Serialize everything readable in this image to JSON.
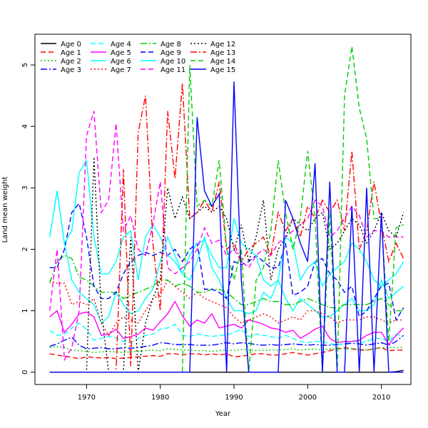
{
  "chart_data": {
    "type": "line",
    "title": "",
    "xlabel": "Year",
    "ylabel": "Land mean weight",
    "xlim": [
      1963,
      2014
    ],
    "ylim": [
      -0.2,
      5.5
    ],
    "x_ticks": [
      1970,
      1980,
      1990,
      2000,
      2010
    ],
    "y_ticks": [
      0,
      1,
      2,
      3,
      4,
      5
    ],
    "legend_position": "top-left",
    "x": [
      1965,
      1966,
      1967,
      1968,
      1969,
      1970,
      1971,
      1972,
      1973,
      1974,
      1975,
      1976,
      1977,
      1978,
      1979,
      1980,
      1981,
      1982,
      1983,
      1984,
      1985,
      1986,
      1987,
      1988,
      1989,
      1990,
      1991,
      1992,
      1993,
      1994,
      1995,
      1996,
      1997,
      1998,
      1999,
      2000,
      2001,
      2002,
      2003,
      2004,
      2005,
      2006,
      2007,
      2008,
      2009,
      2010,
      2011,
      2012,
      2013
    ],
    "series": [
      {
        "name": "Age 0",
        "color": "#000000",
        "dash": "solid",
        "values": [
          0,
          0,
          0,
          0,
          0,
          0,
          0,
          0,
          0,
          0,
          0,
          0,
          0,
          0,
          0,
          0,
          0,
          0,
          0,
          0,
          0,
          0,
          0,
          0,
          0,
          0,
          0,
          0,
          0,
          0,
          0,
          0,
          0,
          0,
          0,
          0,
          0,
          0,
          0,
          0,
          0,
          0,
          0,
          0,
          0,
          0,
          0,
          0.01,
          0.03
        ]
      },
      {
        "name": "Age 1",
        "color": "#ff0000",
        "dash": "dashed",
        "values": [
          0.3,
          0.28,
          0.26,
          0.24,
          0.22,
          0.25,
          0.24,
          0.23,
          0.24,
          0.22,
          0.23,
          0.24,
          0.25,
          0.26,
          0.27,
          0.26,
          0.3,
          0.3,
          0.28,
          0.3,
          0.3,
          0.28,
          0.3,
          0.28,
          0.3,
          0.25,
          0.26,
          0.28,
          0.3,
          0.3,
          0.28,
          0.28,
          0.3,
          0.32,
          0.3,
          0.28,
          0.3,
          0.32,
          0.35,
          0.38,
          0.4,
          0.38,
          0.36,
          0.36,
          0.38,
          0.4,
          0.35,
          0.36,
          0.36
        ]
      },
      {
        "name": "Age 2",
        "color": "#00cd00",
        "dash": "dotted",
        "values": [
          0.4,
          0.42,
          0.4,
          0.36,
          0.35,
          0.34,
          0.32,
          0.33,
          0.34,
          0.33,
          0.32,
          0.33,
          0.34,
          0.35,
          0.36,
          0.35,
          0.38,
          0.37,
          0.36,
          0.36,
          0.35,
          0.35,
          0.34,
          0.35,
          0.36,
          0.35,
          0.37,
          0.36,
          0.35,
          0.36,
          0.36,
          0.36,
          0.37,
          0.38,
          0.36,
          0.37,
          0.38,
          0.36,
          0.38,
          0.38,
          0.38,
          0.38,
          0.38,
          0.36,
          0.38,
          0.4,
          0.4,
          0.4,
          0.4
        ]
      },
      {
        "name": "Age 3",
        "color": "#0000ff",
        "dash": "dashdot",
        "values": [
          0.42,
          0.46,
          0.52,
          0.57,
          0.44,
          0.38,
          0.39,
          0.4,
          0.38,
          0.38,
          0.4,
          0.39,
          0.4,
          0.42,
          0.44,
          0.48,
          0.47,
          0.45,
          0.45,
          0.45,
          0.44,
          0.44,
          0.44,
          0.46,
          0.48,
          0.46,
          0.48,
          0.47,
          0.45,
          0.44,
          0.45,
          0.44,
          0.45,
          0.46,
          0.45,
          0.44,
          0.45,
          0.44,
          0.44,
          0.45,
          0.46,
          0.47,
          0.46,
          0.44,
          0.46,
          0.48,
          0.44,
          0.5,
          0.6
        ]
      },
      {
        "name": "Age 4",
        "color": "#00ffff",
        "dash": "dashed",
        "values": [
          0.68,
          0.6,
          0.62,
          0.72,
          0.8,
          0.7,
          0.52,
          0.55,
          0.58,
          0.56,
          0.5,
          0.48,
          0.55,
          0.6,
          0.62,
          0.7,
          0.72,
          0.78,
          0.6,
          0.58,
          0.62,
          0.6,
          0.58,
          0.6,
          0.6,
          0.65,
          0.7,
          0.58,
          0.62,
          0.6,
          0.58,
          0.55,
          0.6,
          0.55,
          0.5,
          0.48,
          0.5,
          0.5,
          0.46,
          0.45,
          0.46,
          0.52,
          0.48,
          0.5,
          0.55,
          0.55,
          0.5,
          0.62,
          0.58
        ]
      },
      {
        "name": "Age 5",
        "color": "#ff00ff",
        "dash": "solid",
        "values": [
          0.9,
          1.0,
          0.65,
          0.78,
          0.95,
          0.98,
          0.9,
          0.6,
          0.62,
          0.7,
          0.55,
          0.58,
          0.62,
          0.72,
          0.68,
          0.82,
          0.95,
          1.15,
          0.92,
          0.75,
          0.85,
          0.8,
          0.95,
          0.72,
          0.75,
          0.78,
          0.72,
          0.85,
          0.82,
          0.78,
          0.72,
          0.7,
          0.65,
          0.68,
          0.55,
          0.62,
          0.7,
          0.75,
          0.55,
          0.48,
          0.5,
          0.5,
          0.52,
          0.6,
          0.65,
          0.65,
          0.45,
          0.6,
          0.72
        ]
      },
      {
        "name": "Age 6",
        "color": "#00ffff",
        "dash": "solid",
        "values": [
          2.2,
          2.95,
          2.1,
          1.5,
          1.3,
          1.2,
          1.1,
          0.8,
          0.9,
          1.3,
          1.1,
          0.95,
          1.0,
          1.2,
          1.35,
          1.8,
          2.2,
          1.9,
          1.6,
          1.5,
          1.8,
          2.2,
          1.7,
          1.5,
          1.2,
          1.0,
          1.0,
          0.95,
          1.0,
          1.3,
          1.2,
          1.5,
          1.2,
          1.0,
          1.2,
          1.1,
          1.0,
          0.9,
          0.9,
          1.0,
          1.1,
          1.2,
          1.0,
          1.0,
          1.1,
          1.5,
          1.2,
          1.3,
          1.4
        ]
      },
      {
        "name": "Age 7",
        "color": "#ff0000",
        "dash": "dotted",
        "values": [
          1.5,
          1.45,
          1.45,
          1.1,
          1.15,
          1.1,
          1.2,
          0.8,
          0.6,
          0.8,
          0.9,
          0.85,
          0.8,
          1.0,
          1.2,
          1.25,
          1.5,
          1.4,
          1.3,
          1.2,
          1.3,
          1.2,
          1.15,
          1.1,
          1.05,
          0.9,
          0.8,
          0.85,
          0.9,
          0.95,
          0.9,
          0.8,
          0.85,
          0.9,
          0.85,
          1.0,
          1.0,
          0.95,
          0.9,
          0.8,
          0.85,
          0.85,
          0.85,
          0.9,
          0.9,
          0.85,
          0.8,
          0.85,
          0.85
        ]
      },
      {
        "name": "Age 8",
        "color": "#00cd00",
        "dash": "dashdot",
        "values": [
          1.45,
          1.8,
          1.9,
          1.85,
          1.55,
          1.5,
          1.4,
          1.3,
          1.3,
          1.3,
          1.2,
          1.25,
          1.3,
          1.35,
          1.4,
          1.5,
          1.5,
          1.4,
          1.45,
          1.4,
          1.3,
          1.3,
          1.35,
          1.35,
          1.3,
          1.2,
          1.1,
          1.1,
          1.15,
          1.2,
          1.15,
          1.15,
          1.1,
          1.1,
          1.15,
          1.2,
          1.15,
          1.1,
          1.05,
          1.05,
          1.1,
          1.1,
          1.1,
          1.1,
          1.15,
          1.2,
          1.1,
          1.0,
          1.0
        ]
      },
      {
        "name": "Age 9",
        "color": "#0000ff",
        "dash": "dashed",
        "values": [
          1.7,
          1.7,
          2.0,
          2.6,
          2.75,
          2.2,
          1.4,
          1.2,
          1.2,
          1.3,
          1.6,
          1.8,
          1.9,
          1.95,
          1.9,
          1.95,
          1.9,
          2.0,
          1.8,
          2.0,
          2.1,
          1.35,
          1.35,
          1.3,
          1.2,
          1.8,
          1.75,
          1.8,
          1.9,
          1.8,
          1.7,
          1.7,
          2.1,
          1.25,
          1.3,
          1.4,
          1.8,
          1.85,
          1.6,
          1.5,
          1.3,
          1.4,
          0.9,
          1.0,
          1.2,
          1.4,
          1.45,
          0.85,
          1.05
        ]
      },
      {
        "name": "Age 10",
        "color": "#00ffff",
        "dash": "solid",
        "values": [
          2.2,
          2.95,
          2.1,
          2.3,
          3.25,
          3.45,
          2.2,
          1.6,
          1.6,
          1.8,
          2.2,
          2.3,
          1.5,
          2.2,
          2.4,
          2.2,
          1.9,
          1.8,
          1.6,
          1.9,
          2.1,
          2.15,
          1.9,
          1.7,
          1.7,
          2.5,
          2.1,
          2.0,
          1.9,
          1.5,
          1.4,
          1.5,
          2.2,
          2.1,
          1.5,
          1.7,
          1.8,
          1.4,
          1.6,
          1.7,
          1.8,
          2.1,
          2.0,
          1.8,
          1.5,
          1.4,
          1.5,
          1.6,
          1.8
        ]
      },
      {
        "name": "Age 11",
        "color": "#ff00ff",
        "dash": "dashed",
        "values": [
          1.0,
          2.0,
          0.2,
          0.4,
          1.0,
          3.85,
          4.25,
          2.6,
          2.8,
          4.05,
          2.3,
          2.55,
          2.0,
          1.9,
          2.4,
          3.1,
          1.7,
          1.6,
          1.7,
          1.8,
          2.0,
          2.35,
          2.1,
          2.15,
          1.9,
          2.0,
          1.8,
          1.7,
          1.9,
          2.0,
          1.9,
          2.1,
          2.2,
          2.3,
          2.4,
          2.5,
          2.8,
          2.7,
          2.2,
          2.3,
          2.5,
          2.7,
          2.55,
          2.2,
          2.3,
          2.3,
          2.2,
          2.2,
          2.2
        ]
      },
      {
        "name": "Age 12",
        "color": "#000000",
        "dash": "dotted",
        "values": [
          0,
          0,
          0,
          0,
          0,
          0,
          3.5,
          1.0,
          0,
          0,
          0,
          2.2,
          0,
          0.8,
          1.2,
          1.5,
          3.0,
          2.5,
          2.85,
          2.5,
          2.6,
          2.7,
          2.6,
          2.7,
          2.5,
          2.0,
          2.4,
          1.8,
          2.2,
          2.8,
          1.5,
          2.0,
          2.2,
          2.5,
          2.4,
          2.3,
          2.5,
          2.6,
          2.0,
          2.1,
          2.3,
          2.5,
          2.4,
          2.1,
          2.3,
          2.6,
          2.3,
          2.2,
          2.6
        ]
      },
      {
        "name": "Age 13",
        "color": "#ff0000",
        "dash": "dashdot",
        "values": [
          0,
          0,
          0,
          0,
          0,
          0,
          0,
          0,
          0,
          0,
          3.3,
          0.1,
          3.9,
          4.5,
          2.1,
          1.0,
          4.25,
          3.15,
          4.7,
          2.5,
          2.6,
          2.8,
          2.6,
          3.1,
          2.0,
          2.1,
          1.8,
          2.0,
          2.1,
          2.2,
          1.9,
          2.6,
          2.3,
          2.5,
          2.2,
          2.7,
          2.5,
          2.8,
          2.6,
          2.8,
          2.3,
          3.6,
          2.0,
          2.3,
          3.1,
          2.4,
          1.8,
          2.1,
          1.85
        ]
      },
      {
        "name": "Age 14",
        "color": "#00cd00",
        "dash": "dashed",
        "values": [
          0,
          0,
          0,
          0,
          0,
          0,
          0,
          0,
          0,
          0,
          0,
          0,
          0,
          0,
          0,
          0,
          0,
          0,
          0,
          5.0,
          2.7,
          2.8,
          2.7,
          3.45,
          2.0,
          1.5,
          2.0,
          0,
          1.5,
          1.7,
          2.3,
          3.45,
          2.6,
          2.0,
          2.5,
          3.6,
          2.5,
          0,
          2.6,
          0,
          4.5,
          5.3,
          4.3,
          3.8,
          2.5,
          2.5,
          0.5,
          2.35,
          2.4
        ]
      },
      {
        "name": "Age 15",
        "color": "#0000ff",
        "dash": "solid",
        "values": [
          0,
          0,
          0,
          0,
          0,
          0,
          0,
          0,
          0,
          0,
          0,
          0,
          0,
          0,
          0,
          0,
          0,
          0,
          0,
          0,
          4.15,
          2.95,
          2.7,
          2.9,
          0,
          4.73,
          1.5,
          0,
          0,
          0,
          0,
          0,
          2.8,
          2.5,
          2.1,
          1.8,
          3.4,
          0,
          3.1,
          0,
          0,
          2.7,
          0,
          3.0,
          0,
          2.6,
          0,
          0,
          0
        ]
      }
    ]
  }
}
